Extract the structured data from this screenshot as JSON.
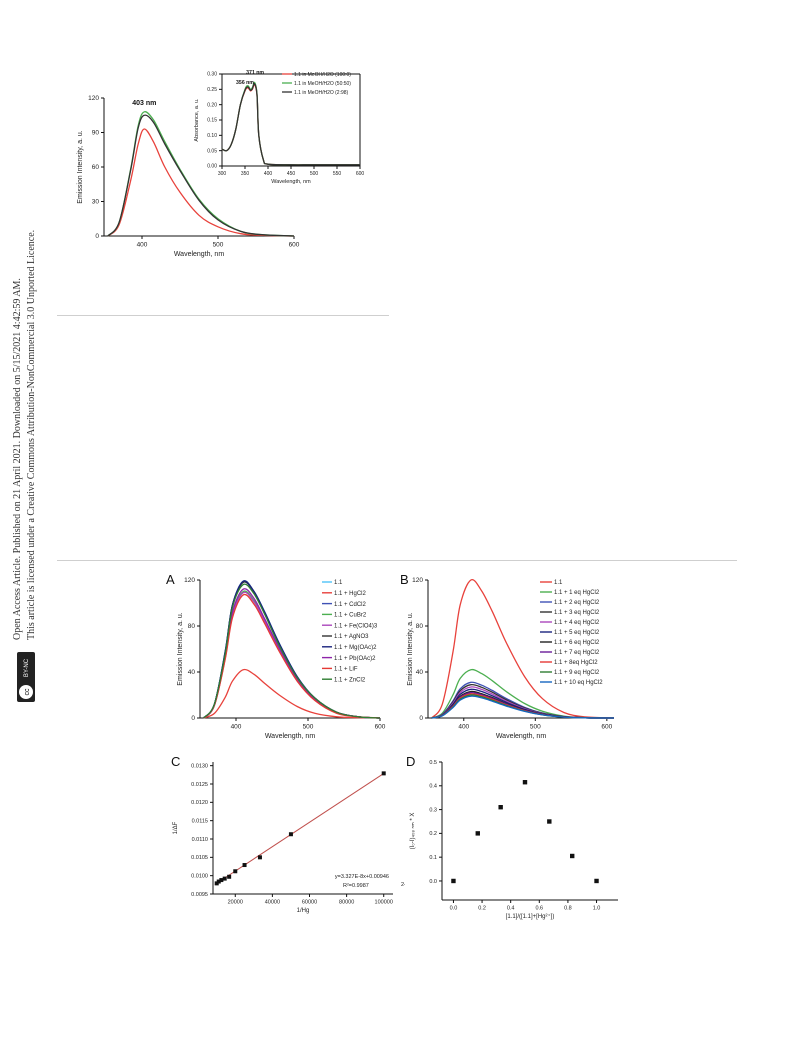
{
  "sidebar": {
    "line1": "Open Access Article. Published on 21 April 2021. Downloaded on 5/15/2021 4:42:59 AM.",
    "line2": "This article is licensed under a Creative Commons Attribution-NonCommercial 3.0 Unported Licence.",
    "badge_cc": "cc",
    "badge_text": "BY-NC"
  },
  "chart_data": [
    {
      "id": "top_main",
      "type": "line",
      "title": "",
      "xlabel": "Wavelength, nm",
      "ylabel": "Emission Intensity, a. u.",
      "xlim": [
        350,
        600
      ],
      "ylim": [
        0,
        120
      ],
      "xticks": [
        400,
        500,
        600
      ],
      "yticks": [
        0,
        30,
        60,
        90,
        120
      ],
      "peak_label": "403 nm",
      "colors": [
        "#e8423c",
        "#4caf50",
        "#333333"
      ],
      "x": [
        355,
        370,
        385,
        395,
        403,
        415,
        430,
        450,
        475,
        500,
        530,
        560,
        600
      ],
      "series": [
        {
          "values": [
            0,
            10,
            48,
            80,
            93,
            82,
            60,
            38,
            18,
            8,
            2,
            0.5,
            0
          ]
        },
        {
          "values": [
            0,
            12,
            58,
            96,
            108,
            101,
            82,
            58,
            32,
            15,
            4,
            1,
            0
          ]
        },
        {
          "values": [
            0,
            12,
            57,
            94,
            105,
            99,
            80,
            57,
            31,
            14,
            4,
            1,
            0
          ]
        }
      ]
    },
    {
      "id": "top_inset",
      "type": "line",
      "title": "",
      "xlabel": "Wavelength, nm",
      "ylabel": "Absorbance, a. u.",
      "xlim": [
        300,
        600
      ],
      "ylim": [
        0,
        0.3
      ],
      "xticks": [
        300,
        350,
        400,
        450,
        500,
        550,
        600
      ],
      "xtick_labels": [
        "300",
        "350",
        "400",
        "450",
        "500",
        "550",
        "600"
      ],
      "yticks": [
        0,
        0.05,
        0.1,
        0.15,
        0.2,
        0.25,
        0.3
      ],
      "ytick_labels": [
        "0.00",
        "0.05",
        "0.10",
        "0.15",
        "0.20",
        "0.25",
        "0.30"
      ],
      "peak_labels": [
        "356 nm",
        "371 nm"
      ],
      "colors": [
        "#e8423c",
        "#4caf50",
        "#333333"
      ],
      "legend": [
        "1.1 in MeOH/H2O (100:0)",
        "1.1 in MeOH/H2O (50:50)",
        "1.1 in MeOH/H2O (2:98)"
      ],
      "x": [
        300,
        310,
        320,
        330,
        340,
        350,
        356,
        362,
        366,
        371,
        376,
        380,
        390,
        400,
        450,
        500,
        600
      ],
      "series": [
        {
          "values": [
            0.055,
            0.05,
            0.07,
            0.12,
            0.2,
            0.245,
            0.255,
            0.245,
            0.25,
            0.265,
            0.23,
            0.1,
            0.02,
            0.006,
            0.004,
            0.004,
            0.004
          ]
        },
        {
          "values": [
            0.055,
            0.05,
            0.07,
            0.12,
            0.2,
            0.25,
            0.262,
            0.25,
            0.256,
            0.272,
            0.235,
            0.1,
            0.02,
            0.006,
            0.004,
            0.004,
            0.004
          ]
        },
        {
          "values": [
            0.055,
            0.05,
            0.07,
            0.12,
            0.2,
            0.247,
            0.258,
            0.247,
            0.252,
            0.268,
            0.232,
            0.1,
            0.02,
            0.006,
            0.004,
            0.004,
            0.004
          ]
        }
      ]
    },
    {
      "id": "panel_A",
      "panel_label": "A",
      "type": "line",
      "title": "",
      "xlabel": "Wavelength,  nm",
      "ylabel": "Emission Intensity, a. u.",
      "xlim": [
        350,
        600
      ],
      "ylim": [
        0,
        120
      ],
      "xticks": [
        400,
        500,
        600
      ],
      "yticks": [
        0,
        40,
        80,
        120
      ],
      "legend": [
        "1.1",
        "1.1 + HgCl2",
        "1.1 + CdCl2",
        "1.1 + CuBr2",
        "1.1 + Fe(ClO4)3",
        "1.1 + AgNO3",
        "1.1 + Mg(OAc)2",
        "1.1 + Pb(OAc)2",
        "1.1 + LiF",
        "1.1 + ZnCl2"
      ],
      "colors": [
        "#4fc3f7",
        "#e8423c",
        "#3f51b5",
        "#4caf50",
        "#ab47bc",
        "#333333",
        "#1a237e",
        "#8e24aa",
        "#e53935",
        "#2e7d32"
      ],
      "x": [
        355,
        370,
        385,
        395,
        410,
        425,
        440,
        460,
        485,
        510,
        540,
        570,
        600
      ],
      "series": [
        {
          "values": [
            0,
            12,
            58,
            98,
            119,
            110,
            92,
            65,
            36,
            17,
            5,
            1,
            0
          ]
        },
        {
          "values": [
            0,
            4,
            18,
            32,
            42,
            38,
            30,
            20,
            10,
            4,
            1,
            0.3,
            0
          ]
        },
        {
          "values": [
            0,
            12,
            57,
            97,
            118,
            109,
            91,
            64,
            35,
            17,
            5,
            1,
            0
          ]
        },
        {
          "values": [
            0,
            11,
            53,
            90,
            110,
            102,
            85,
            60,
            33,
            16,
            5,
            1,
            0
          ]
        },
        {
          "values": [
            0,
            11,
            52,
            89,
            109,
            101,
            84,
            59,
            33,
            16,
            5,
            1,
            0
          ]
        },
        {
          "values": [
            0,
            12,
            57,
            98,
            118,
            110,
            91,
            64,
            35,
            17,
            5,
            1,
            0
          ]
        },
        {
          "values": [
            0,
            12,
            58,
            98,
            119,
            110,
            92,
            65,
            36,
            17,
            5,
            1,
            0
          ]
        },
        {
          "values": [
            0,
            11,
            54,
            92,
            112,
            104,
            86,
            61,
            34,
            16,
            5,
            1,
            0
          ]
        },
        {
          "values": [
            0,
            11,
            51,
            87,
            107,
            99,
            82,
            58,
            32,
            15,
            4,
            1,
            0
          ]
        },
        {
          "values": [
            0,
            12,
            56,
            96,
            116,
            108,
            90,
            63,
            35,
            17,
            5,
            1,
            0
          ]
        }
      ]
    },
    {
      "id": "panel_B",
      "panel_label": "B",
      "type": "line",
      "title": "",
      "xlabel": "Wavelength,  nm",
      "ylabel": "Emission Intensity, a. u.",
      "xlim": [
        350,
        610
      ],
      "ylim": [
        0,
        120
      ],
      "xticks": [
        400,
        500,
        600
      ],
      "yticks": [
        0,
        40,
        80,
        120
      ],
      "legend": [
        "1.1",
        "1.1 + 1 eq HgCl2",
        "1.1 + 2 eq HgCl2",
        "1.1 + 3 eq HgCl2",
        "1.1 + 4 eq HgCl2",
        "1.1 + 5 eq HgCl2",
        "1.1 + 6 eq HgCl2",
        "1.1 + 7 eq HgCl2",
        "1.1 + 8eq  HgCl2",
        "1.1 + 9 eq HgCl2",
        "1.1 + 10 eq HgCl2"
      ],
      "colors": [
        "#e8423c",
        "#4caf50",
        "#3f51b5",
        "#333333",
        "#ab47bc",
        "#1a237e",
        "#212121",
        "#6a1b9a",
        "#e53935",
        "#2e7d32",
        "#1565c0"
      ],
      "x": [
        355,
        370,
        385,
        395,
        410,
        425,
        440,
        460,
        485,
        510,
        540,
        570,
        610
      ],
      "peaks": [
        120,
        42,
        31,
        29,
        27,
        25,
        23,
        22,
        21,
        20,
        19
      ]
    },
    {
      "id": "panel_C",
      "panel_label": "C",
      "type": "scatter",
      "title": "",
      "xlabel": "1/Hg",
      "xlabel_sup": "2+",
      "ylabel": "1/ΔF",
      "xlim": [
        8000,
        105000
      ],
      "ylim": [
        0.0095,
        0.0131
      ],
      "xticks": [
        20000,
        40000,
        60000,
        80000,
        100000
      ],
      "yticks": [
        0.0095,
        0.01,
        0.0105,
        0.011,
        0.0115,
        0.012,
        0.0125,
        0.013
      ],
      "ytick_labels": [
        "0.0095",
        "0.0100",
        "0.0105",
        "0.0110",
        "0.0115",
        "0.0120",
        "0.0125",
        "0.0130"
      ],
      "x": [
        10000,
        11100,
        12500,
        14300,
        16700,
        20000,
        25000,
        33300,
        50000,
        100000
      ],
      "y": [
        0.00979,
        0.00984,
        0.00988,
        0.00992,
        0.00997,
        0.01012,
        0.01029,
        0.0105,
        0.01113,
        0.01279
      ],
      "fit": {
        "slope": 3.327e-08,
        "intercept": 0.00946
      },
      "equation": "y=3.327E-8x+0.00946",
      "r2": "R²=0.9987"
    },
    {
      "id": "panel_D",
      "panel_label": "D",
      "type": "scatter",
      "title": "",
      "xlabel": "[1.1]/([1.1]+[Hg²⁺])",
      "ylabel": "(I₀-I)₄₀₈ ₙₘ * X",
      "xlim": [
        -0.08,
        1.15
      ],
      "ylim": [
        -0.08,
        0.5
      ],
      "xticks": [
        0.0,
        0.2,
        0.4,
        0.6,
        0.8,
        1.0
      ],
      "xtick_labels": [
        "0.0",
        "0.2",
        "0.4",
        "0.6",
        "0.8",
        "1.0"
      ],
      "yticks": [
        0.0,
        0.1,
        0.2,
        0.3,
        0.4,
        0.5
      ],
      "ytick_labels": [
        "0.0",
        "0.1",
        "0.2",
        "0.3",
        "0.4",
        "0.5"
      ],
      "x": [
        0.0,
        0.17,
        0.33,
        0.5,
        0.67,
        0.83,
        1.0
      ],
      "y": [
        0.0,
        0.2,
        0.31,
        0.415,
        0.25,
        0.105,
        0.0
      ]
    }
  ]
}
